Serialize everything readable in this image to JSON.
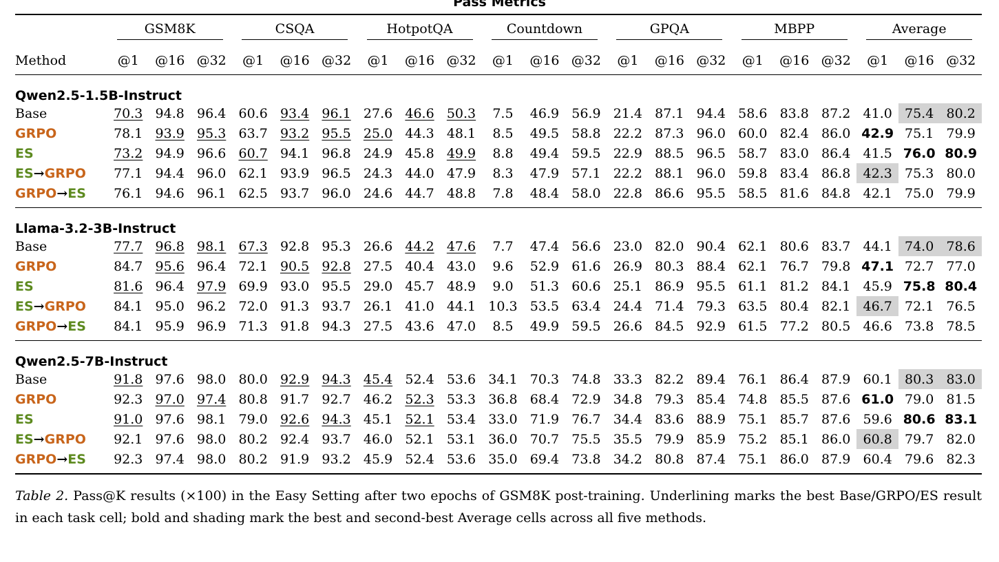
{
  "table_title": "Pass Metrics",
  "header": {
    "method_label": "Method",
    "tasks": [
      "GSM8K",
      "CSQA",
      "HotpotQA",
      "Countdown",
      "GPQA",
      "MBPP",
      "Average"
    ],
    "k_labels": [
      "@1",
      "@16",
      "@32"
    ]
  },
  "sections": [
    {
      "model": "Qwen2.5-1.5B-Instruct",
      "rows": [
        {
          "method": "Base",
          "values": [
            "70.3",
            "94.8",
            "96.4",
            "60.6",
            "93.4",
            "96.1",
            "27.6",
            "46.6",
            "50.3",
            "7.5",
            "46.9",
            "56.9",
            "21.4",
            "87.1",
            "94.4",
            "58.6",
            "83.8",
            "87.2",
            "41.0",
            "75.4",
            "80.2"
          ]
        },
        {
          "method": "GRPO",
          "values": [
            "78.1",
            "93.9",
            "95.3",
            "63.7",
            "93.2",
            "95.5",
            "25.0",
            "44.3",
            "48.1",
            "8.5",
            "49.5",
            "58.8",
            "22.2",
            "87.3",
            "96.0",
            "60.0",
            "82.4",
            "86.0",
            "42.9",
            "75.1",
            "79.9"
          ]
        },
        {
          "method": "ES",
          "values": [
            "73.2",
            "94.9",
            "96.6",
            "60.7",
            "94.1",
            "96.8",
            "24.9",
            "45.8",
            "49.9",
            "8.8",
            "49.4",
            "59.5",
            "22.9",
            "88.5",
            "96.5",
            "58.7",
            "83.0",
            "86.4",
            "41.5",
            "76.0",
            "80.9"
          ]
        },
        {
          "method": "ES→GRPO",
          "values": [
            "77.1",
            "94.4",
            "96.0",
            "62.1",
            "93.9",
            "96.5",
            "24.3",
            "44.0",
            "47.9",
            "8.3",
            "47.9",
            "57.1",
            "22.2",
            "88.1",
            "96.0",
            "59.8",
            "83.4",
            "86.8",
            "42.3",
            "75.3",
            "80.0"
          ]
        },
        {
          "method": "GRPO→ES",
          "values": [
            "76.1",
            "94.6",
            "96.1",
            "62.5",
            "93.7",
            "96.0",
            "24.6",
            "44.7",
            "48.8",
            "7.8",
            "48.4",
            "58.0",
            "22.8",
            "86.6",
            "95.5",
            "58.5",
            "81.6",
            "84.8",
            "42.1",
            "75.0",
            "79.9"
          ]
        }
      ]
    },
    {
      "model": "Llama-3.2-3B-Instruct",
      "rows": [
        {
          "method": "Base",
          "values": [
            "77.7",
            "96.8",
            "98.1",
            "67.3",
            "92.8",
            "95.3",
            "26.6",
            "44.2",
            "47.6",
            "7.7",
            "47.4",
            "56.6",
            "23.0",
            "82.0",
            "90.4",
            "62.1",
            "80.6",
            "83.7",
            "44.1",
            "74.0",
            "78.6"
          ]
        },
        {
          "method": "GRPO",
          "values": [
            "84.7",
            "95.6",
            "96.4",
            "72.1",
            "90.5",
            "92.8",
            "27.5",
            "40.4",
            "43.0",
            "9.6",
            "52.9",
            "61.6",
            "26.9",
            "80.3",
            "88.4",
            "62.1",
            "76.7",
            "79.8",
            "47.1",
            "72.7",
            "77.0"
          ]
        },
        {
          "method": "ES",
          "values": [
            "81.6",
            "96.4",
            "97.9",
            "69.9",
            "93.0",
            "95.5",
            "29.0",
            "45.7",
            "48.9",
            "9.0",
            "51.3",
            "60.6",
            "25.1",
            "86.9",
            "95.5",
            "61.1",
            "81.2",
            "84.1",
            "45.9",
            "75.8",
            "80.4"
          ]
        },
        {
          "method": "ES→GRPO",
          "values": [
            "84.1",
            "95.0",
            "96.2",
            "72.0",
            "91.3",
            "93.7",
            "26.1",
            "41.0",
            "44.1",
            "10.3",
            "53.5",
            "63.4",
            "24.4",
            "71.4",
            "79.3",
            "63.5",
            "80.4",
            "82.1",
            "46.7",
            "72.1",
            "76.5"
          ]
        },
        {
          "method": "GRPO→ES",
          "values": [
            "84.1",
            "95.9",
            "96.9",
            "71.3",
            "91.8",
            "94.3",
            "27.5",
            "43.6",
            "47.0",
            "8.5",
            "49.9",
            "59.5",
            "26.6",
            "84.5",
            "92.9",
            "61.5",
            "77.2",
            "80.5",
            "46.6",
            "73.8",
            "78.5"
          ]
        }
      ]
    },
    {
      "model": "Qwen2.5-7B-Instruct",
      "rows": [
        {
          "method": "Base",
          "values": [
            "91.8",
            "97.6",
            "98.0",
            "80.0",
            "92.9",
            "94.3",
            "45.4",
            "52.4",
            "53.6",
            "34.1",
            "70.3",
            "74.8",
            "33.3",
            "82.2",
            "89.4",
            "76.1",
            "86.4",
            "87.9",
            "60.1",
            "80.3",
            "83.0"
          ]
        },
        {
          "method": "GRPO",
          "values": [
            "92.3",
            "97.0",
            "97.4",
            "80.8",
            "91.7",
            "92.7",
            "46.2",
            "52.3",
            "53.3",
            "36.8",
            "68.4",
            "72.9",
            "34.8",
            "79.3",
            "85.4",
            "74.8",
            "85.5",
            "87.6",
            "61.0",
            "79.0",
            "81.5"
          ]
        },
        {
          "method": "ES",
          "values": [
            "91.0",
            "97.6",
            "98.1",
            "79.0",
            "92.6",
            "94.3",
            "45.1",
            "52.1",
            "53.4",
            "33.0",
            "71.9",
            "76.7",
            "34.4",
            "83.6",
            "88.9",
            "75.1",
            "85.7",
            "87.6",
            "59.6",
            "80.6",
            "83.1"
          ]
        },
        {
          "method": "ES→GRPO",
          "values": [
            "92.1",
            "97.6",
            "98.0",
            "80.2",
            "92.4",
            "93.7",
            "46.0",
            "52.1",
            "53.1",
            "36.0",
            "70.7",
            "75.5",
            "35.5",
            "79.9",
            "85.9",
            "75.2",
            "85.1",
            "86.0",
            "60.8",
            "79.7",
            "82.0"
          ]
        },
        {
          "method": "GRPO→ES",
          "values": [
            "92.3",
            "97.4",
            "98.0",
            "80.2",
            "91.9",
            "93.2",
            "45.9",
            "52.4",
            "53.6",
            "35.0",
            "69.4",
            "73.8",
            "34.2",
            "80.8",
            "87.4",
            "75.1",
            "86.0",
            "87.9",
            "60.4",
            "79.6",
            "82.3"
          ]
        }
      ]
    }
  ],
  "underlined_cells": [
    [
      [
        0
      ],
      [
        1,
        2
      ],
      [
        0
      ],
      [
        1,
        2
      ],
      [
        1,
        2
      ],
      [
        0
      ],
      [
        1,
        2
      ],
      [
        0
      ],
      [
        2
      ]
    ],
    [
      [
        0,
        1,
        2
      ],
      [
        1
      ],
      [
        0,
        2
      ],
      [
        0
      ],
      [
        1,
        2
      ],
      [],
      [
        1,
        2
      ],
      [],
      []
    ],
    [
      [
        0
      ],
      [
        1,
        2
      ],
      [
        0
      ],
      [
        1,
        2
      ],
      [],
      [
        1,
        2
      ],
      [
        0
      ],
      [
        1
      ],
      [
        1
      ]
    ]
  ],
  "caption": {
    "label": "Table 2.",
    "text": " Pass@K results (×100) in the Easy Setting after two epochs of GSM8K post-training. Underlining marks the best Base/GRPO/ES result in each task cell; bold and shading mark the best and second-best Average cells across all five methods."
  },
  "colors": {
    "grpo": "#c8651b",
    "es": "#5d8a1f",
    "shade": "#d3d3d3"
  }
}
